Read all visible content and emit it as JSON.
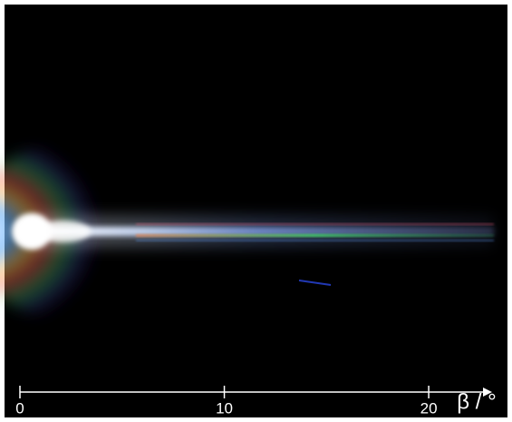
{
  "axis": {
    "label": "β / °",
    "xlim": [
      0,
      23.1
    ],
    "xticks": [
      0,
      10,
      20
    ]
  }
}
